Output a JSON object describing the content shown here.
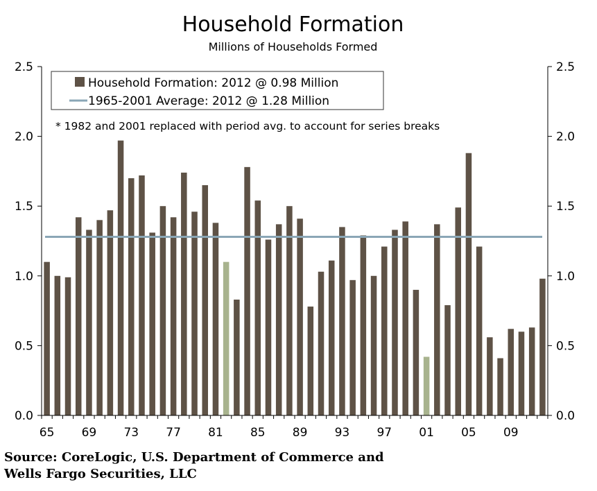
{
  "chart_data": {
    "type": "bar",
    "title": "Household Formation",
    "subtitle": "Millions of Households Formed",
    "x_tick_labels": [
      "65",
      "69",
      "73",
      "77",
      "81",
      "85",
      "89",
      "93",
      "97",
      "01",
      "05",
      "09"
    ],
    "years": [
      1965,
      1966,
      1967,
      1968,
      1969,
      1970,
      1971,
      1972,
      1973,
      1974,
      1975,
      1976,
      1977,
      1978,
      1979,
      1980,
      1981,
      1982,
      1983,
      1984,
      1985,
      1986,
      1987,
      1988,
      1989,
      1990,
      1991,
      1992,
      1993,
      1994,
      1995,
      1996,
      1997,
      1998,
      1999,
      2000,
      2001,
      2002,
      2003,
      2004,
      2005,
      2006,
      2007,
      2008,
      2009,
      2010,
      2011,
      2012
    ],
    "series": [
      {
        "name": "Household Formation: 2012 @ 0.98 Million",
        "color": "#5e5246",
        "values": [
          1.1,
          1.0,
          0.99,
          1.42,
          1.33,
          1.4,
          1.47,
          1.97,
          1.7,
          1.72,
          1.31,
          1.5,
          1.42,
          1.74,
          1.46,
          1.65,
          1.38,
          1.1,
          0.83,
          1.78,
          1.54,
          1.26,
          1.37,
          1.5,
          1.41,
          0.78,
          1.03,
          1.11,
          1.35,
          0.97,
          1.29,
          1.0,
          1.21,
          1.33,
          1.39,
          0.9,
          0.42,
          1.37,
          0.79,
          1.49,
          1.88,
          1.21,
          0.56,
          0.41,
          0.62,
          0.6,
          0.63,
          0.98
        ]
      },
      {
        "name": "1965-2001 Average: 2012 @ 1.28 Million",
        "color": "#8aa6b6",
        "value": 1.28
      }
    ],
    "highlight_years": [
      1982,
      2001
    ],
    "highlight_color": "#a8b38e",
    "ylim": [
      0,
      2.5
    ],
    "y_ticks": [
      "0.0",
      "0.5",
      "1.0",
      "1.5",
      "2.0",
      "2.5"
    ],
    "note": "* 1982 and 2001 replaced with period avg. to account for series breaks",
    "legend_position": "top-left"
  },
  "source": {
    "line1": "Source: CoreLogic, U.S. Department of Commerce and",
    "line2": "Wells Fargo Securities, LLC"
  }
}
